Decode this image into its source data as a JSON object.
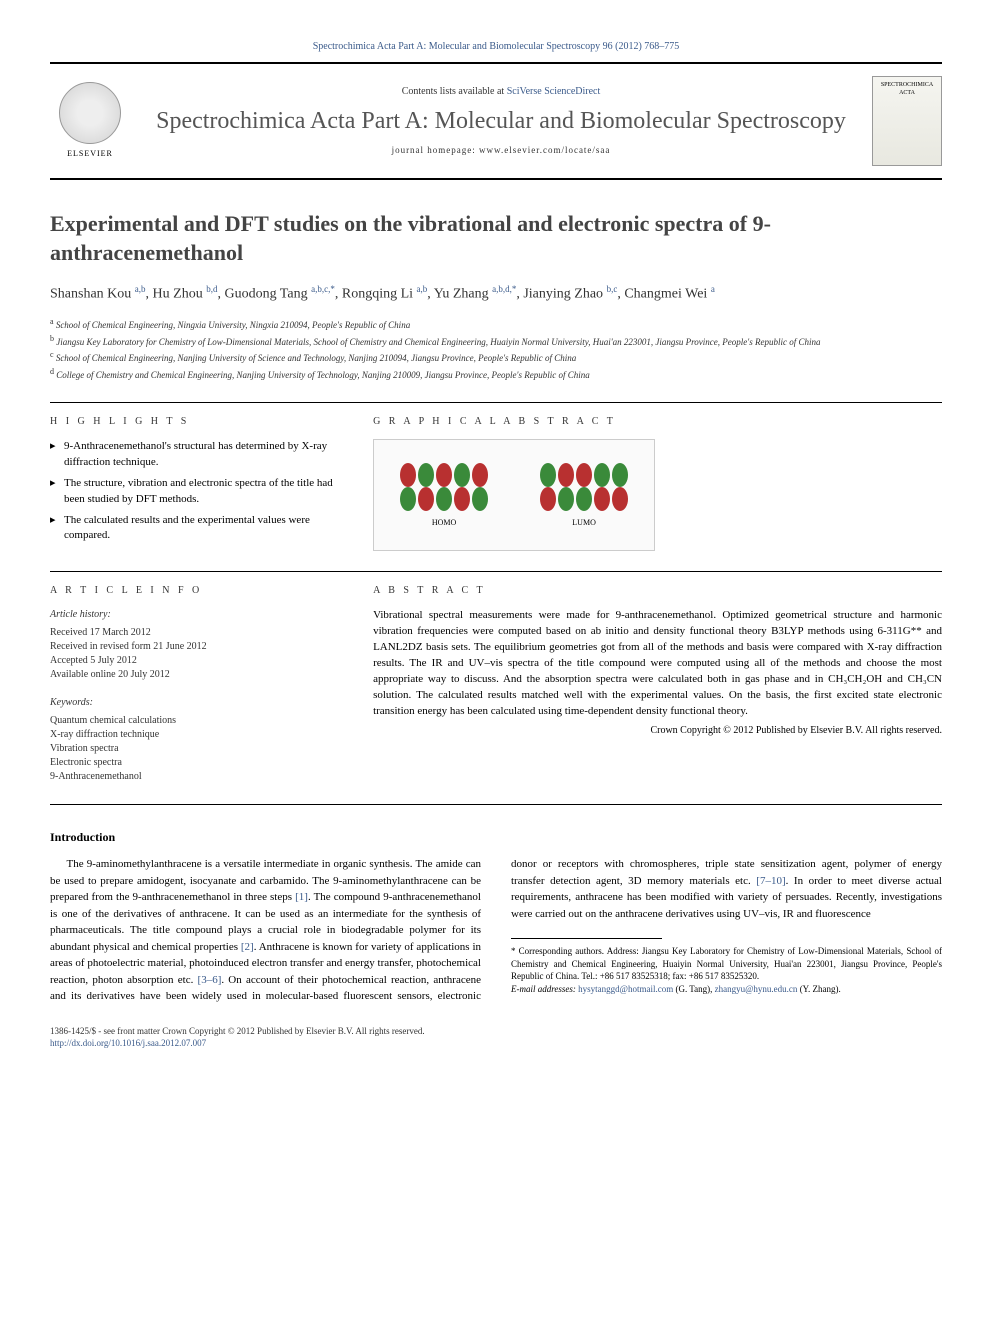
{
  "citation": "Spectrochimica Acta Part A: Molecular and Biomolecular Spectroscopy 96 (2012) 768–775",
  "header": {
    "contents_prefix": "Contents lists available at ",
    "contents_link": "SciVerse ScienceDirect",
    "journal_name": "Spectrochimica Acta Part A: Molecular and Biomolecular Spectroscopy",
    "homepage_prefix": "journal homepage: ",
    "homepage": "www.elsevier.com/locate/saa",
    "publisher": "ELSEVIER",
    "cover_text": "SPECTROCHIMICA ACTA"
  },
  "title": "Experimental and DFT studies on the vibrational and electronic spectra of 9-anthracenemethanol",
  "authors_html": "Shanshan Kou <sup>a,b</sup>, Hu Zhou <sup>b,d</sup>, Guodong Tang <sup>a,b,c,*</sup>, Rongqing Li <sup>a,b</sup>, Yu Zhang <sup>a,b,d,*</sup>, Jianying Zhao <sup>b,c</sup>, Changmei Wei <sup>a</sup>",
  "affiliations": [
    {
      "sup": "a",
      "text": "School of Chemical Engineering, Ningxia University, Ningxia 210094, People's Republic of China"
    },
    {
      "sup": "b",
      "text": "Jiangsu Key Laboratory for Chemistry of Low-Dimensional Materials, School of Chemistry and Chemical Engineering, Huaiyin Normal University, Huai'an 223001, Jiangsu Province, People's Republic of China"
    },
    {
      "sup": "c",
      "text": "School of Chemical Engineering, Nanjing University of Science and Technology, Nanjing 210094, Jiangsu Province, People's Republic of China"
    },
    {
      "sup": "d",
      "text": "College of Chemistry and Chemical Engineering, Nanjing University of Technology, Nanjing 210009, Jiangsu Province, People's Republic of China"
    }
  ],
  "section_labels": {
    "highlights": "H I G H L I G H T S",
    "graphical": "G R A P H I C A L  A B S T R A C T",
    "article_info": "A R T I C L E  I N F O",
    "abstract": "A B S T R A C T"
  },
  "highlights": [
    "9-Anthracenemethanol's structural has determined by X-ray diffraction technique.",
    "The structure, vibration and electronic spectra of the title had been studied by DFT methods.",
    "The calculated results and the experimental values were compared."
  ],
  "graphical": {
    "homo_label": "HOMO",
    "lumo_label": "LUMO"
  },
  "article_info": {
    "history_label": "Article history:",
    "history": [
      "Received 17 March 2012",
      "Received in revised form 21 June 2012",
      "Accepted 5 July 2012",
      "Available online 20 July 2012"
    ],
    "keywords_label": "Keywords:",
    "keywords": [
      "Quantum chemical calculations",
      "X-ray diffraction technique",
      "Vibration spectra",
      "Electronic spectra",
      "9-Anthracenemethanol"
    ]
  },
  "abstract": "Vibrational spectral measurements were made for 9-anthracenemethanol. Optimized geometrical structure and harmonic vibration frequencies were computed based on ab initio and density functional theory B3LYP methods using 6-311G** and LANL2DZ basis sets. The equilibrium geometries got from all of the methods and basis were compared with X-ray diffraction results. The IR and UV–vis spectra of the title compound were computed using all of the methods and choose the most appropriate way to discuss. And the absorption spectra were calculated both in gas phase and in CH₃CH₂OH and CH₃CN solution. The calculated results matched well with the experimental values. On the basis, the first excited state electronic transition energy has been calculated using time-dependent density functional theory.",
  "copyright": "Crown Copyright © 2012 Published by Elsevier B.V. All rights reserved.",
  "intro_heading": "Introduction",
  "intro_para1": "The 9-aminomethylanthracene is a versatile intermediate in organic synthesis. The amide can be used to prepare amidogent, isocyanate and carbamido. The 9-aminomethylanthracene can be prepared from the 9-anthracenemethanol in three steps [1]. The compound 9-anthracenemethanol is one of the derivatives of anthracene. It can be used as an intermediate for the synthesis of pharmaceuticals. The title compound plays a crucial role in biodegradable polymer for its abundant physical and chemical properties [2]. Anthracene is known for variety of applications in areas of photoelectric material, photoinduced electron transfer and energy transfer, photochemical reaction, photon absorption etc. [3–6]. On account of their photochemical reaction, anthracene and its derivatives have been widely used in molecular-based fluorescent sensors, electronic donor or receptors with chromospheres, triple state sensitization agent, polymer of energy transfer detection agent, 3D memory materials etc. [7–10]. In order to meet diverse actual requirements, anthracene has been modified with variety of persuades. Recently, investigations were carried out on the anthracene derivatives using UV–vis, IR and fluorescence",
  "footnotes": {
    "corr": "* Corresponding authors. Address: Jiangsu Key Laboratory for Chemistry of Low-Dimensional Materials, School of Chemistry and Chemical Engineering, Huaiyin Normal University, Huai'an 223001, Jiangsu Province, People's Republic of China. Tel.: +86 517 83525318; fax: +86 517 83525320.",
    "email_label": "E-mail addresses: ",
    "email1": "hysytanggd@hotmail.com",
    "email1_who": " (G. Tang), ",
    "email2": "zhangyu@hynu.edu.cn",
    "email2_who": " (Y. Zhang)."
  },
  "footer": {
    "line1": "1386-1425/$ - see front matter Crown Copyright © 2012 Published by Elsevier B.V. All rights reserved.",
    "doi": "http://dx.doi.org/10.1016/j.saa.2012.07.007"
  },
  "colors": {
    "link": "#3a5a8a",
    "lobe_red": "#b83030",
    "lobe_green": "#3a8a3a"
  }
}
